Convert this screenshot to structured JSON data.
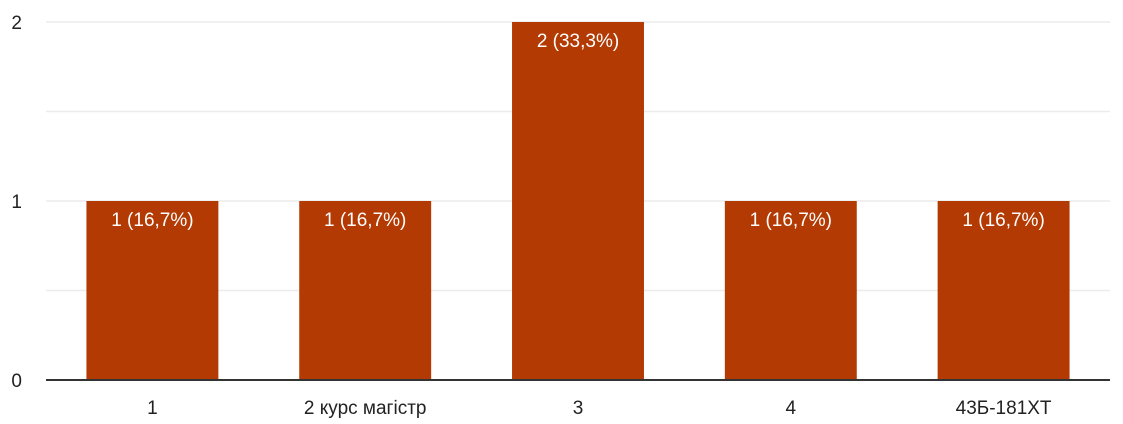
{
  "chart_data": {
    "type": "bar",
    "title": "",
    "xlabel": "",
    "ylabel": "",
    "categories": [
      "1",
      "2 курс магістр",
      "3",
      "4",
      "43Б-181ХТ"
    ],
    "values": [
      1,
      1,
      2,
      1,
      1
    ],
    "data_labels": [
      "1 (16,7%)",
      "1 (16,7%)",
      "2 (33,3%)",
      "1 (16,7%)",
      "1 (16,7%)"
    ],
    "yticks": [
      0,
      1,
      2
    ],
    "ylim": [
      0,
      2
    ],
    "grid": true,
    "bar_color": "#b33a03"
  }
}
